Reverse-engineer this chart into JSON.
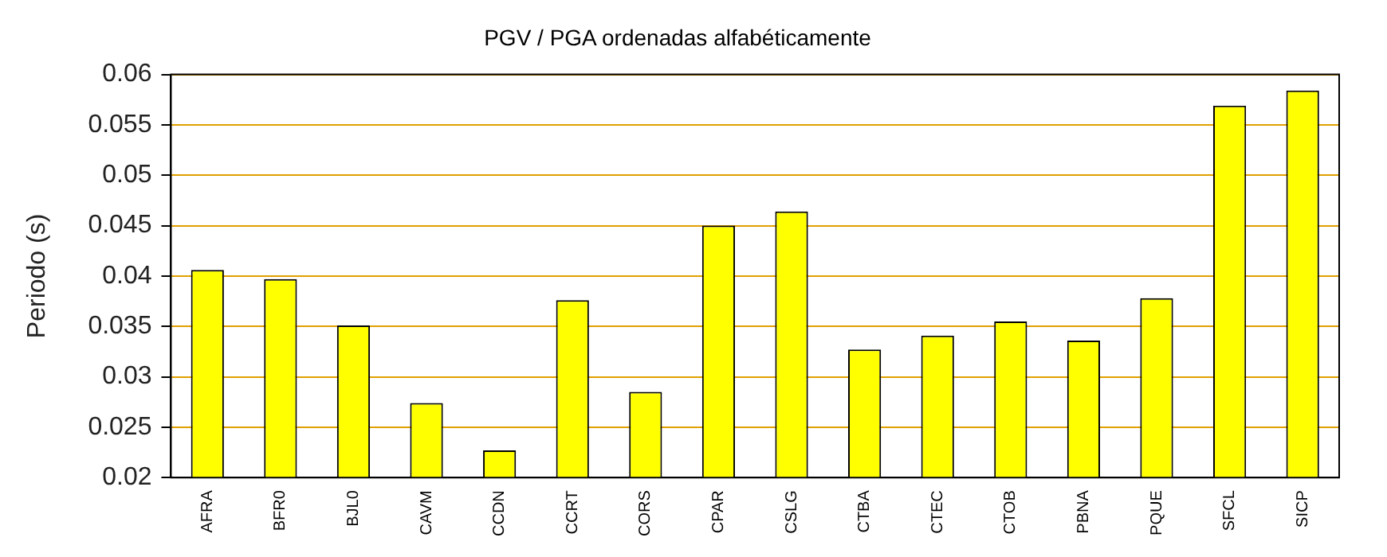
{
  "chart_data": {
    "type": "bar",
    "title": "PGV / PGA ordenadas alfabéticamente",
    "ylabel": "Periodo (s)",
    "categories": [
      "AFRA",
      "BFR0",
      "BJL0",
      "CAVM",
      "CCDN",
      "CCRT",
      "CORS",
      "CPAR",
      "CSLG",
      "CTBA",
      "CTEC",
      "CTOB",
      "PBNA",
      "PQUE",
      "SFCL",
      "SICP"
    ],
    "values": [
      0.0406,
      0.0397,
      0.0351,
      0.0274,
      0.0227,
      0.0376,
      0.0285,
      0.045,
      0.0464,
      0.0327,
      0.0341,
      0.0355,
      0.0336,
      0.0378,
      0.0569,
      0.0584
    ],
    "color": "#ffff00",
    "ylim": [
      0.02,
      0.06
    ],
    "yticks": [
      0.02,
      0.025,
      0.03,
      0.035,
      0.04,
      0.045,
      0.05,
      0.055,
      0.06
    ],
    "grid": "y",
    "legend": false
  }
}
